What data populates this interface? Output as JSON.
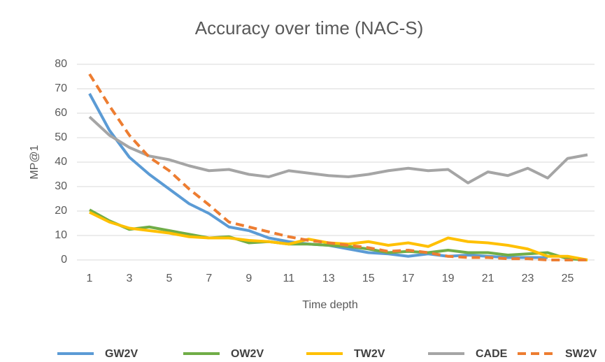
{
  "chart_data": {
    "type": "line",
    "title": "Accuracy over time (NAC-S)",
    "x_label": "Time depth",
    "y_label": "MP@1",
    "x": [
      1,
      2,
      3,
      4,
      5,
      6,
      7,
      8,
      9,
      10,
      11,
      12,
      13,
      14,
      15,
      16,
      17,
      18,
      19,
      20,
      21,
      22,
      23,
      24,
      25,
      26
    ],
    "xlim": [
      1,
      26
    ],
    "xticks": [
      1,
      3,
      5,
      7,
      9,
      11,
      13,
      15,
      17,
      19,
      21,
      23,
      25
    ],
    "ylim": [
      0,
      80
    ],
    "yticks": [
      0,
      10,
      20,
      30,
      40,
      50,
      60,
      70,
      80
    ],
    "grid": true,
    "legend": "bottom",
    "series": [
      {
        "name": "GW2V",
        "color": "#5b9bd5",
        "values": [
          68,
          53,
          42,
          35,
          29,
          23,
          19,
          13.5,
          12,
          9,
          7.5,
          6.5,
          6,
          4.5,
          3,
          2.5,
          1.5,
          2.5,
          1.5,
          2,
          1.5,
          1,
          1,
          1,
          null,
          null
        ]
      },
      {
        "name": "OW2V",
        "color": "#70ad47",
        "values": [
          20.5,
          16,
          12.5,
          13.5,
          12,
          10.5,
          9,
          9.5,
          7,
          7.5,
          6.5,
          6.5,
          6,
          5.5,
          4.5,
          3,
          3.5,
          3,
          4,
          3,
          3,
          2,
          2.5,
          3,
          0.5,
          0
        ]
      },
      {
        "name": "TW2V",
        "color": "#ffc000",
        "values": [
          19.5,
          15.5,
          13,
          12,
          11,
          9.5,
          9,
          9,
          8,
          7.5,
          6.5,
          8.5,
          7,
          6.5,
          7.5,
          6,
          7,
          5.5,
          9,
          7.5,
          7,
          6,
          4.5,
          1.5,
          1.5,
          0
        ]
      },
      {
        "name": "CADE",
        "color": "#a5a5a5",
        "values": [
          58.5,
          51,
          46,
          42.5,
          41,
          38.5,
          36.5,
          37,
          35,
          34,
          36.5,
          35.5,
          34.5,
          34,
          35,
          36.5,
          37.5,
          36.5,
          37,
          31.5,
          36,
          34.5,
          37.5,
          33.5,
          41.5,
          43
        ]
      },
      {
        "name": "SW2V",
        "color": "#ed7d31",
        "dashed": true,
        "values": [
          76,
          63,
          51,
          42,
          36.5,
          29,
          22.5,
          15.5,
          13.5,
          11.5,
          9.5,
          8,
          7,
          6,
          5,
          3.5,
          4,
          3,
          1.5,
          1,
          1,
          0.5,
          0.5,
          0,
          0,
          0
        ]
      }
    ]
  }
}
